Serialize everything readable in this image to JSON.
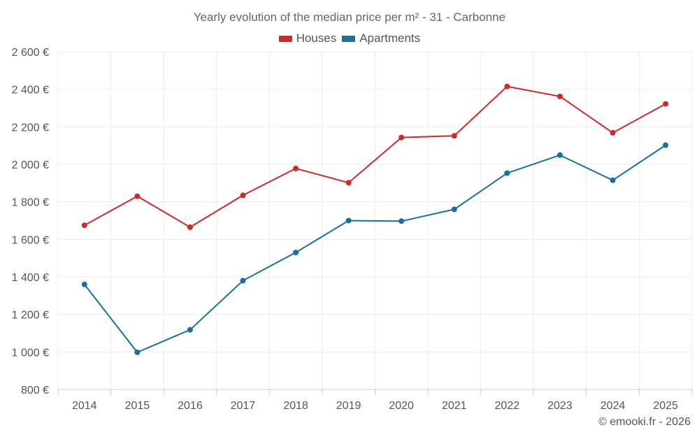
{
  "colors": {
    "houses": "#d62728",
    "apartments": "#1a6fa0",
    "grid": "#ececec",
    "axis": "#cccccc"
  },
  "credit": "© emooki.fr - 2026",
  "chart_data": {
    "type": "line",
    "title": "Yearly evolution of the median price per m² - 31 - Carbonne",
    "categories": [
      "2014",
      "2015",
      "2016",
      "2017",
      "2018",
      "2019",
      "2020",
      "2021",
      "2022",
      "2023",
      "2024",
      "2025"
    ],
    "series": [
      {
        "name": "Houses",
        "color": "#d62728",
        "values": [
          1675,
          1830,
          1665,
          1835,
          1978,
          1902,
          2143,
          2152,
          2415,
          2362,
          2168,
          2322
        ]
      },
      {
        "name": "Apartments",
        "color": "#1a6fa0",
        "values": [
          1360,
          998,
          1118,
          1380,
          1530,
          1700,
          1697,
          1760,
          1953,
          2049,
          1915,
          2102
        ]
      }
    ],
    "ylim": [
      800,
      2600
    ],
    "yticks": [
      800,
      1000,
      1200,
      1400,
      1600,
      1800,
      2000,
      2200,
      2400,
      2600
    ],
    "ytick_labels": [
      "800 €",
      "1 000 €",
      "1 200 €",
      "1 400 €",
      "1 600 €",
      "1 800 €",
      "2 000 €",
      "2 200 €",
      "2 400 €",
      "2 600 €"
    ],
    "xlabel": "",
    "ylabel": "",
    "grid": true,
    "legend_position": "top-center"
  }
}
